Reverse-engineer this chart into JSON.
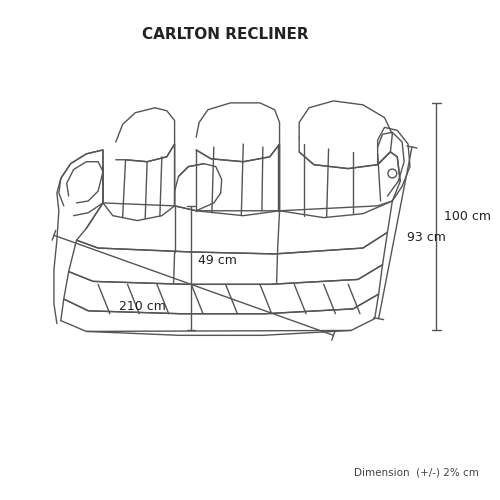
{
  "title": "CARLTON RECLINER",
  "title_fontsize": 11,
  "dim_label_100": "100 cm",
  "dim_label_93": "93 cm",
  "dim_label_210": "210 cm",
  "dim_label_49": "49 cm",
  "footnote": "Dimension  (+/-) 2% cm",
  "line_color": "#555555",
  "bg_color": "#ffffff",
  "fig_width": 5.0,
  "fig_height": 5.0,
  "dpi": 100
}
